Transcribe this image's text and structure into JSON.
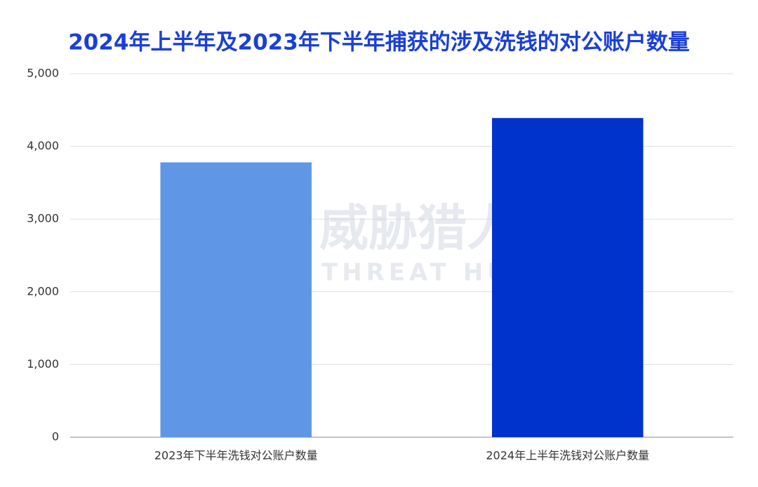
{
  "chart_data": {
    "type": "bar",
    "title": "2024年上半年及2023年下半年捕获的涉及洗钱的对公账户数量",
    "categories": [
      "2023年下半年洗钱对公账户数量",
      "2024年上半年洗钱对公账户数量"
    ],
    "values": [
      3780,
      4390
    ],
    "colors": [
      "#6096e6",
      "#0033cc"
    ],
    "ylim": [
      0,
      5000
    ],
    "yticks": [
      0,
      {
        "value": 1000,
        "label": "1,000"
      },
      {
        "value": 2000,
        "label": "2,000"
      },
      {
        "value": 3000,
        "label": "3,000"
      },
      {
        "value": 4000,
        "label": "4,000"
      },
      {
        "value": 5000,
        "label": "5,000"
      }
    ],
    "grid": true,
    "watermark": [
      "威胁猎人",
      "THREAT HUNTER"
    ]
  }
}
